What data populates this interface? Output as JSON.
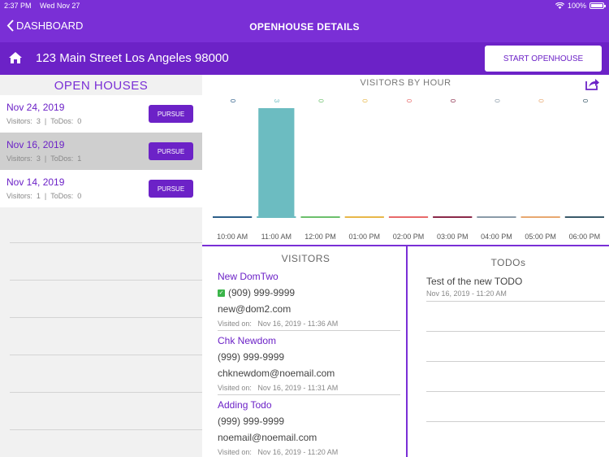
{
  "status_bar": {
    "time": "2:37 PM",
    "date": "Wed Nov 27",
    "battery": "100%"
  },
  "nav": {
    "back_label": "DASHBOARD",
    "title": "OPENHOUSE DETAILS"
  },
  "property": {
    "address": "123 Main Street Los Angeles 98000",
    "start_button": "START OPENHOUSE"
  },
  "open_houses": {
    "title": "OPEN HOUSES",
    "visitors_label": "Visitors:",
    "todos_label": "ToDos:",
    "pursue_label": "PURSUE",
    "items": [
      {
        "date": "Nov 24, 2019",
        "visitors": "3",
        "todos": "0",
        "selected": false
      },
      {
        "date": "Nov 16, 2019",
        "visitors": "3",
        "todos": "1",
        "selected": true
      },
      {
        "date": "Nov 14, 2019",
        "visitors": "1",
        "todos": "0",
        "selected": false
      }
    ]
  },
  "chart_data": {
    "type": "bar",
    "title": "VISITORS BY HOUR",
    "categories": [
      "10:00 AM",
      "11:00 AM",
      "12:00 PM",
      "01:00 PM",
      "02:00 PM",
      "03:00 PM",
      "04:00 PM",
      "05:00 PM",
      "06:00 PM"
    ],
    "values": [
      0,
      3,
      0,
      0,
      0,
      0,
      0,
      0,
      0
    ],
    "colors": [
      "#2e5f8a",
      "#6cbcc1",
      "#6cc06c",
      "#e8b84a",
      "#e86a6a",
      "#8b2a4a",
      "#8a9aa8",
      "#e8a870",
      "#3a5a6a"
    ],
    "ylim": [
      0,
      3
    ]
  },
  "visitors": {
    "title": "VISITORS",
    "visited_label": "Visited on:",
    "items": [
      {
        "name": "New  DomTwo",
        "phone": "(909) 999-9999",
        "email": "new@dom2.com",
        "visited": "Nov 16, 2019 - 11:36 AM",
        "verified": true
      },
      {
        "name": "Chk  Newdom",
        "phone": "(999) 999-9999",
        "email": "chknewdom@noemail.com",
        "visited": "Nov 16, 2019 - 11:31 AM",
        "verified": false
      },
      {
        "name": "Adding  Todo",
        "phone": "(999) 999-9999",
        "email": "noemail@noemail.com",
        "visited": "Nov 16, 2019 - 11:20 AM",
        "verified": false
      }
    ]
  },
  "todos": {
    "title": "TODOs",
    "items": [
      {
        "text": "Test of the new TODO",
        "date": "Nov 16, 2019 - 11:20 AM"
      }
    ]
  }
}
